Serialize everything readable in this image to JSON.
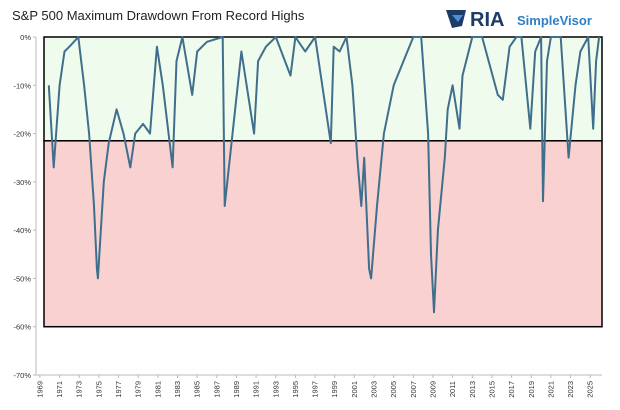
{
  "chart_data": {
    "type": "line",
    "title": "S&P 500 Maximum Drawdown From Record Highs",
    "brand": "RIA",
    "brand_product": "SimpleVisor",
    "xlim": [
      1968.6,
      2026.2
    ],
    "ylim": [
      -70,
      0
    ],
    "xticks": [
      1969,
      1971,
      1973,
      1975,
      1977,
      1979,
      1981,
      1983,
      1985,
      1987,
      1989,
      1991,
      1993,
      1995,
      1997,
      1999,
      2001,
      2003,
      2005,
      2007,
      2009,
      2011,
      2013,
      2015,
      2017,
      2019,
      2021,
      2023,
      2025
    ],
    "yticks": [
      {
        "value": -70,
        "label": "-70%"
      },
      {
        "value": -60,
        "label": "-60%"
      },
      {
        "value": -50,
        "label": "-50%"
      },
      {
        "value": -40,
        "label": "-40%"
      },
      {
        "value": -30,
        "label": "-30%"
      },
      {
        "value": -20,
        "label": "-20%"
      },
      {
        "value": -10,
        "label": "-10%"
      },
      {
        "value": 0,
        "label": "0%"
      }
    ],
    "bands": [
      {
        "from": 0,
        "to": -21.5,
        "color": "#effbec"
      },
      {
        "from": -21.5,
        "to": -60,
        "color": "#f9d1d1"
      }
    ],
    "color": "#3f6f8c",
    "x": [
      1969.9,
      1970.4,
      1971.0,
      1971.5,
      1972.0,
      1972.9,
      1973.5,
      1974.0,
      1974.5,
      1974.8,
      1974.9,
      1975.5,
      1976.0,
      1976.8,
      1977.5,
      1978.2,
      1978.7,
      1979.5,
      1980.2,
      1980.9,
      1981.5,
      1982.5,
      1982.9,
      1983.5,
      1984.5,
      1985.0,
      1986.0,
      1987.6,
      1987.8,
      1988.5,
      1989.5,
      1990.8,
      1991.2,
      1992.0,
      1993.0,
      1994.5,
      1995.0,
      1996.0,
      1997.0,
      1998.6,
      1998.9,
      1999.5,
      2000.2,
      2000.8,
      2001.3,
      2001.7,
      2002.0,
      2002.5,
      2002.7,
      2003.3,
      2004.0,
      2005.0,
      2006.0,
      2007.0,
      2007.8,
      2008.5,
      2008.8,
      2009.1,
      2009.5,
      2010.2,
      2010.5,
      2011.0,
      2011.7,
      2012.0,
      2013.0,
      2014.0,
      2015.6,
      2016.1,
      2016.8,
      2017.5,
      2018.0,
      2018.9,
      2019.4,
      2020.0,
      2020.2,
      2020.6,
      2021.0,
      2022.0,
      2022.8,
      2023.5,
      2024.0,
      2024.8,
      2025.3,
      2025.6,
      2025.9
    ],
    "values": [
      -10,
      -27,
      -10,
      -3,
      -2,
      0,
      -10,
      -20,
      -35,
      -48,
      -50,
      -30,
      -22,
      -15,
      -20,
      -27,
      -20,
      -18,
      -20,
      -2,
      -10,
      -27,
      -5,
      0,
      -12,
      -3,
      -1,
      0,
      -35,
      -22,
      -3,
      -20,
      -5,
      -2,
      0,
      -8,
      0,
      -3,
      0,
      -22,
      -2,
      -3,
      0,
      -10,
      -25,
      -35,
      -25,
      -48,
      -50,
      -35,
      -20,
      -10,
      -5,
      0,
      0,
      -20,
      -45,
      -57,
      -40,
      -25,
      -15,
      -10,
      -19,
      -8,
      0,
      0,
      -12,
      -13,
      -2,
      0,
      0,
      -19,
      -3,
      0,
      -34,
      -5,
      0,
      0,
      -25,
      -10,
      -3,
      0,
      -19,
      -5,
      0
    ]
  }
}
